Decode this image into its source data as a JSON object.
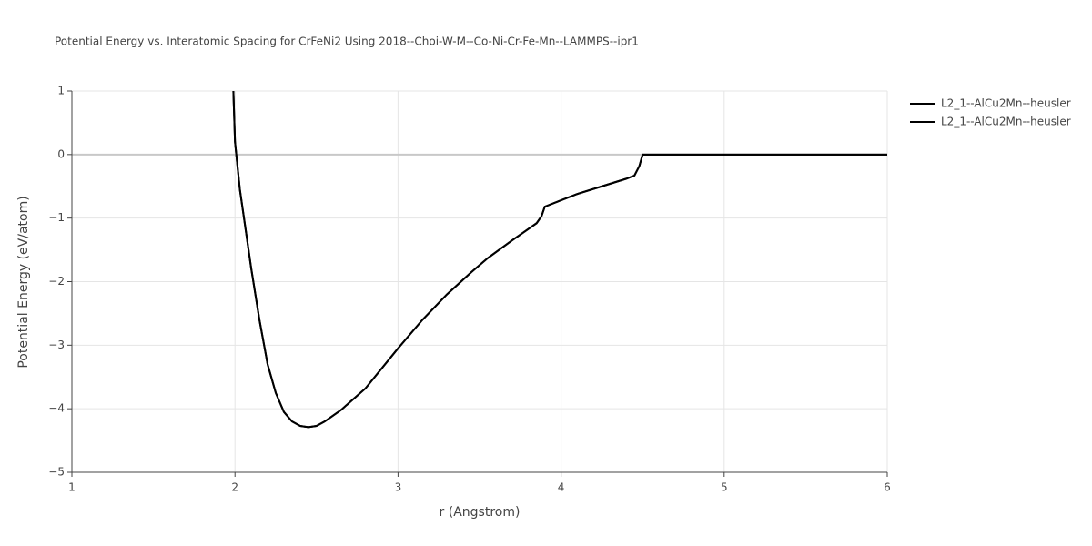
{
  "chart_data": {
    "type": "line",
    "title": "Potential Energy vs. Interatomic Spacing for CrFeNi2 Using 2018--Choi-W-M--Co-Ni-Cr-Fe-Mn--LAMMPS--ipr1",
    "x_label": "r (Angstrom)",
    "y_label": "Potential Energy (eV/atom)",
    "x": [
      1.99,
      2.0,
      2.03,
      2.1,
      2.15,
      2.2,
      2.25,
      2.3,
      2.35,
      2.4,
      2.45,
      2.5,
      2.55,
      2.65,
      2.8,
      3.0,
      3.15,
      3.3,
      3.45,
      3.55,
      3.7,
      3.85,
      3.88,
      3.9,
      4.0,
      4.1,
      4.25,
      4.4,
      4.45,
      4.48,
      4.5,
      5.0,
      6.0
    ],
    "series": [
      {
        "name": "L2_1--AlCu2Mn--heusler",
        "color": "#000000",
        "values": [
          1.0,
          0.2,
          -0.55,
          -1.8,
          -2.6,
          -3.3,
          -3.75,
          -4.05,
          -4.2,
          -4.27,
          -4.29,
          -4.27,
          -4.2,
          -4.02,
          -3.68,
          -3.05,
          -2.6,
          -2.2,
          -1.85,
          -1.63,
          -1.35,
          -1.08,
          -0.97,
          -0.82,
          -0.72,
          -0.62,
          -0.5,
          -0.38,
          -0.33,
          -0.18,
          0,
          0,
          0
        ]
      },
      {
        "name": "L2_1--AlCu2Mn--heusler",
        "color": "#000000",
        "values": [
          1.0,
          0.2,
          -0.55,
          -1.8,
          -2.6,
          -3.3,
          -3.75,
          -4.05,
          -4.2,
          -4.27,
          -4.29,
          -4.27,
          -4.2,
          -4.02,
          -3.68,
          -3.05,
          -2.6,
          -2.2,
          -1.85,
          -1.63,
          -1.35,
          -1.08,
          -0.97,
          -0.82,
          -0.72,
          -0.62,
          -0.5,
          -0.38,
          -0.33,
          -0.18,
          0,
          0,
          0
        ]
      }
    ],
    "xlim": [
      1,
      6
    ],
    "xticks": [
      1,
      2,
      3,
      4,
      5,
      6
    ],
    "ylim": [
      -5,
      1
    ],
    "yticks": [
      {
        "value": -5,
        "label": "−5"
      },
      {
        "value": -4,
        "label": "−4"
      },
      {
        "value": -3,
        "label": "−3"
      },
      {
        "value": -2,
        "label": "−2"
      },
      {
        "value": -1,
        "label": "−1"
      },
      0,
      1
    ],
    "grid": true
  }
}
